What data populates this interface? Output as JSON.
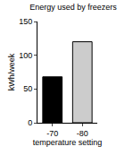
{
  "chart_data": {
    "type": "bar",
    "title": "Energy used by freezers",
    "x_label": "temperature setting",
    "y_label": "kWh/week",
    "categories": [
      "-70",
      "-80"
    ],
    "values": [
      68,
      120
    ],
    "colors": [
      "#000000",
      "#cccccc"
    ],
    "ylim": [
      0,
      150
    ],
    "yticks": [
      0,
      50,
      100,
      150
    ],
    "grid": false
  }
}
